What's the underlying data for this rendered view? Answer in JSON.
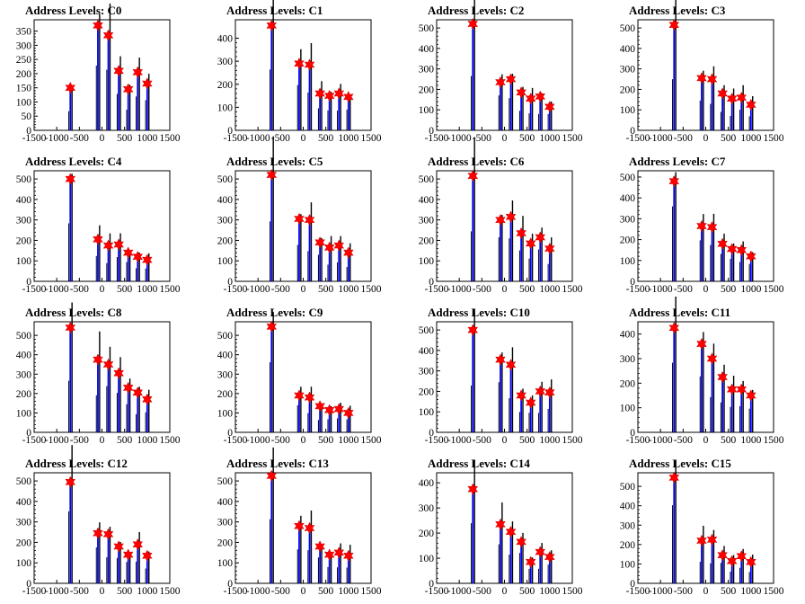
{
  "figure": {
    "ncols": 4,
    "colors": {
      "histogram": "#000000",
      "fit": "#0000ff",
      "peak_marker": "#ff0000",
      "frame": "#000000"
    },
    "peak_marker_icon": "star-marker"
  },
  "chart_data": [
    {
      "type": "bar",
      "title": "Address Levels: C0",
      "xlim": [
        -1500,
        1500
      ],
      "ylim": [
        0,
        390
      ],
      "x_ticks": [
        -1500,
        -1000,
        -500,
        0,
        500,
        1000,
        1500
      ],
      "y_ticks": [
        0,
        50,
        100,
        150,
        200,
        250,
        300,
        350
      ],
      "series": [
        {
          "x": [
            -700,
            -90,
            140,
            370,
            580,
            790,
            1000
          ],
          "values": [
            150,
            370,
            335,
            210,
            145,
            205,
            165
          ]
        }
      ]
    },
    {
      "type": "bar",
      "title": "Address Levels: C1",
      "xlim": [
        -1500,
        1500
      ],
      "ylim": [
        0,
        480
      ],
      "x_ticks": [
        -1500,
        -1000,
        -500,
        0,
        500,
        1000,
        1500
      ],
      "y_ticks": [
        0,
        100,
        200,
        300,
        400
      ],
      "series": [
        {
          "x": [
            -700,
            -90,
            140,
            370,
            580,
            790,
            1000
          ],
          "values": [
            455,
            290,
            285,
            160,
            150,
            160,
            145
          ]
        }
      ]
    },
    {
      "type": "bar",
      "title": "Address Levels: C2",
      "xlim": [
        -1500,
        1500
      ],
      "ylim": [
        0,
        540
      ],
      "x_ticks": [
        -1500,
        -1000,
        -500,
        0,
        500,
        1000,
        1500
      ],
      "y_ticks": [
        0,
        100,
        200,
        300,
        400,
        500
      ],
      "series": [
        {
          "x": [
            -700,
            -90,
            140,
            370,
            580,
            790,
            1000
          ],
          "values": [
            520,
            235,
            250,
            185,
            155,
            165,
            115
          ]
        }
      ]
    },
    {
      "type": "bar",
      "title": "Address Levels: C3",
      "xlim": [
        -1500,
        1500
      ],
      "ylim": [
        0,
        540
      ],
      "x_ticks": [
        -1500,
        -1000,
        -500,
        0,
        500,
        1000,
        1500
      ],
      "y_ticks": [
        0,
        100,
        200,
        300,
        400,
        500
      ],
      "series": [
        {
          "x": [
            -700,
            -90,
            140,
            370,
            580,
            790,
            1000
          ],
          "values": [
            515,
            255,
            250,
            180,
            155,
            160,
            125
          ]
        }
      ]
    },
    {
      "type": "bar",
      "title": "Address Levels: C4",
      "xlim": [
        -1500,
        1500
      ],
      "ylim": [
        0,
        540
      ],
      "x_ticks": [
        -1500,
        -1000,
        -500,
        0,
        500,
        1000,
        1500
      ],
      "y_ticks": [
        0,
        100,
        200,
        300,
        400,
        500
      ],
      "series": [
        {
          "x": [
            -700,
            -90,
            140,
            370,
            580,
            790,
            1000
          ],
          "values": [
            500,
            205,
            175,
            180,
            140,
            120,
            105
          ]
        }
      ]
    },
    {
      "type": "bar",
      "title": "Address Levels: C5",
      "xlim": [
        -1500,
        1500
      ],
      "ylim": [
        0,
        540
      ],
      "x_ticks": [
        -1500,
        -1000,
        -500,
        0,
        500,
        1000,
        1500
      ],
      "y_ticks": [
        0,
        100,
        200,
        300,
        400,
        500
      ],
      "series": [
        {
          "x": [
            -700,
            -90,
            140,
            370,
            580,
            790,
            1000
          ],
          "values": [
            520,
            305,
            300,
            190,
            165,
            175,
            140
          ]
        }
      ]
    },
    {
      "type": "bar",
      "title": "Address Levels: C6",
      "xlim": [
        -1500,
        1500
      ],
      "ylim": [
        0,
        540
      ],
      "x_ticks": [
        -1500,
        -1000,
        -500,
        0,
        500,
        1000,
        1500
      ],
      "y_ticks": [
        0,
        100,
        200,
        300,
        400,
        500
      ],
      "series": [
        {
          "x": [
            -700,
            -90,
            140,
            370,
            580,
            790,
            1000
          ],
          "values": [
            515,
            300,
            315,
            235,
            185,
            215,
            160
          ]
        }
      ]
    },
    {
      "type": "bar",
      "title": "Address Levels: C7",
      "xlim": [
        -1500,
        1500
      ],
      "ylim": [
        0,
        530
      ],
      "x_ticks": [
        -1500,
        -1000,
        -500,
        0,
        500,
        1000,
        1500
      ],
      "y_ticks": [
        0,
        100,
        200,
        300,
        400,
        500
      ],
      "series": [
        {
          "x": [
            -700,
            -90,
            140,
            370,
            580,
            790,
            1000
          ],
          "values": [
            480,
            265,
            260,
            180,
            155,
            150,
            120
          ]
        }
      ]
    },
    {
      "type": "bar",
      "title": "Address Levels: C8",
      "xlim": [
        -1500,
        1500
      ],
      "ylim": [
        0,
        570
      ],
      "x_ticks": [
        -1500,
        -1000,
        -500,
        0,
        500,
        1000,
        1500
      ],
      "y_ticks": [
        0,
        100,
        200,
        300,
        400,
        500
      ],
      "series": [
        {
          "x": [
            -700,
            -90,
            140,
            370,
            580,
            790,
            1000
          ],
          "values": [
            540,
            375,
            350,
            305,
            230,
            205,
            170
          ]
        }
      ]
    },
    {
      "type": "bar",
      "title": "Address Levels: C9",
      "xlim": [
        -1500,
        1500
      ],
      "ylim": [
        0,
        570
      ],
      "x_ticks": [
        -1500,
        -1000,
        -500,
        0,
        500,
        1000,
        1500
      ],
      "y_ticks": [
        0,
        100,
        200,
        300,
        400,
        500
      ],
      "series": [
        {
          "x": [
            -700,
            -90,
            140,
            370,
            580,
            790,
            1000
          ],
          "values": [
            545,
            190,
            180,
            135,
            115,
            120,
            100
          ]
        }
      ]
    },
    {
      "type": "bar",
      "title": "Address Levels: C10",
      "xlim": [
        -1500,
        1500
      ],
      "ylim": [
        0,
        540
      ],
      "x_ticks": [
        -1500,
        -1000,
        -500,
        0,
        500,
        1000,
        1500
      ],
      "y_ticks": [
        0,
        100,
        200,
        300,
        400,
        500
      ],
      "series": [
        {
          "x": [
            -700,
            -90,
            140,
            370,
            580,
            790,
            1000
          ],
          "values": [
            500,
            355,
            330,
            180,
            145,
            200,
            195
          ]
        }
      ]
    },
    {
      "type": "bar",
      "title": "Address Levels: C11",
      "xlim": [
        -1500,
        1500
      ],
      "ylim": [
        0,
        450
      ],
      "x_ticks": [
        -1500,
        -1000,
        -500,
        0,
        500,
        1000,
        1500
      ],
      "y_ticks": [
        0,
        100,
        200,
        300,
        400
      ],
      "series": [
        {
          "x": [
            -700,
            -90,
            140,
            370,
            580,
            790,
            1000
          ],
          "values": [
            425,
            360,
            300,
            225,
            175,
            175,
            150
          ]
        }
      ]
    },
    {
      "type": "bar",
      "title": "Address Levels: C12",
      "xlim": [
        -1500,
        1500
      ],
      "ylim": [
        0,
        540
      ],
      "x_ticks": [
        -1500,
        -1000,
        -500,
        0,
        500,
        1000,
        1500
      ],
      "y_ticks": [
        0,
        100,
        200,
        300,
        400,
        500
      ],
      "series": [
        {
          "x": [
            -700,
            -90,
            140,
            370,
            580,
            790,
            1000
          ],
          "values": [
            495,
            245,
            240,
            180,
            140,
            190,
            135
          ]
        }
      ]
    },
    {
      "type": "bar",
      "title": "Address Levels: C13",
      "xlim": [
        -1500,
        1500
      ],
      "ylim": [
        0,
        540
      ],
      "x_ticks": [
        -1500,
        -1000,
        -500,
        0,
        500,
        1000,
        1500
      ],
      "y_ticks": [
        0,
        100,
        200,
        300,
        400,
        500
      ],
      "series": [
        {
          "x": [
            -700,
            -90,
            140,
            370,
            580,
            790,
            1000
          ],
          "values": [
            525,
            280,
            270,
            180,
            140,
            150,
            135
          ]
        }
      ]
    },
    {
      "type": "bar",
      "title": "Address Levels: C14",
      "xlim": [
        -1500,
        1500
      ],
      "ylim": [
        0,
        440
      ],
      "x_ticks": [
        -1500,
        -1000,
        -500,
        0,
        500,
        1000,
        1500
      ],
      "y_ticks": [
        0,
        100,
        200,
        300,
        400
      ],
      "series": [
        {
          "x": [
            -700,
            -90,
            140,
            370,
            580,
            790,
            1000
          ],
          "values": [
            375,
            235,
            205,
            165,
            85,
            125,
            105
          ]
        }
      ]
    },
    {
      "type": "bar",
      "title": "Address Levels: C15",
      "xlim": [
        -1500,
        1500
      ],
      "ylim": [
        0,
        570
      ],
      "x_ticks": [
        -1500,
        -1000,
        -500,
        0,
        500,
        1000,
        1500
      ],
      "y_ticks": [
        0,
        100,
        200,
        300,
        400,
        500
      ],
      "series": [
        {
          "x": [
            -700,
            -90,
            140,
            370,
            580,
            790,
            1000
          ],
          "values": [
            545,
            220,
            225,
            145,
            115,
            140,
            110
          ]
        }
      ]
    }
  ]
}
